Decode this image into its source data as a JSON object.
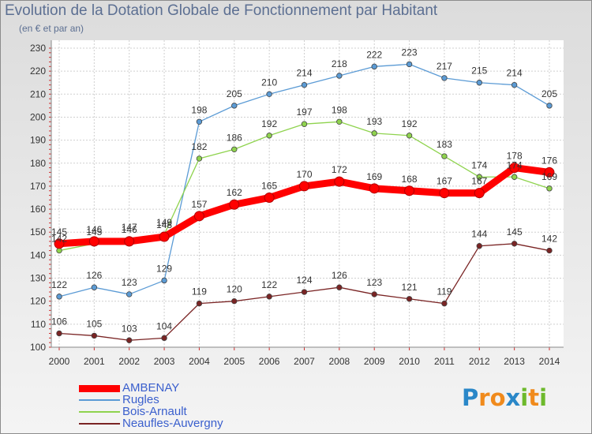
{
  "title": "Evolution de la Dotation Globale de Fonctionnement par Habitant",
  "subtitle": "(en € et par an)",
  "logo": {
    "letters": [
      "P",
      "r",
      "o",
      "x",
      "i",
      "t",
      "i"
    ],
    "colors": [
      "#2a87c8",
      "#f08a1c",
      "#f08a1c",
      "#2a87c8",
      "#6db92c",
      "#f08a1c",
      "#6db92c"
    ]
  },
  "chart_data": {
    "type": "line",
    "x": [
      2000,
      2001,
      2002,
      2003,
      2004,
      2005,
      2006,
      2007,
      2008,
      2009,
      2010,
      2011,
      2012,
      2013,
      2014
    ],
    "ylim": [
      100,
      230
    ],
    "yticks": [
      100,
      110,
      120,
      130,
      140,
      150,
      160,
      170,
      180,
      190,
      200,
      210,
      220,
      230
    ],
    "grid": true,
    "legend_position": "bottom-left",
    "series": [
      {
        "name": "AMBENAY",
        "color": "#ff0000",
        "values": [
          145,
          146,
          146,
          148,
          157,
          162,
          165,
          170,
          172,
          169,
          168,
          167,
          167,
          178,
          176
        ],
        "labels": [
          "145",
          "146",
          "146",
          "148",
          "157",
          "162",
          "165",
          "170",
          "172",
          "169",
          "168",
          "167",
          "167",
          "178",
          "176"
        ]
      },
      {
        "name": "Rugles",
        "color": "#5b9bd5",
        "values": [
          122,
          126,
          123,
          129,
          198,
          205,
          210,
          214,
          218,
          222,
          223,
          217,
          215,
          214,
          205
        ],
        "labels": [
          "122",
          "126",
          "123",
          "129",
          "198",
          "205",
          "210",
          "214",
          "218",
          "222",
          "223",
          "217",
          "215",
          "214",
          "205"
        ]
      },
      {
        "name": "Bois-Arnault",
        "color": "#8fd34e",
        "values": [
          142,
          145,
          147,
          149,
          182,
          186,
          192,
          197,
          198,
          193,
          192,
          183,
          174,
          174,
          169
        ],
        "labels": [
          "142",
          "145",
          "147",
          "149",
          "182",
          "186",
          "192",
          "197",
          "198",
          "193",
          "192",
          "183",
          "174",
          "174",
          "169"
        ]
      },
      {
        "name": "Neaufles-Auvergny",
        "color": "#7a2424",
        "values": [
          106,
          105,
          103,
          104,
          119,
          120,
          122,
          124,
          126,
          123,
          121,
          119,
          144,
          145,
          142
        ],
        "labels": [
          "106",
          "105",
          "103",
          "104",
          "119",
          "120",
          "122",
          "124",
          "126",
          "123",
          "121",
          "119",
          "144",
          "145",
          "142"
        ]
      }
    ]
  }
}
